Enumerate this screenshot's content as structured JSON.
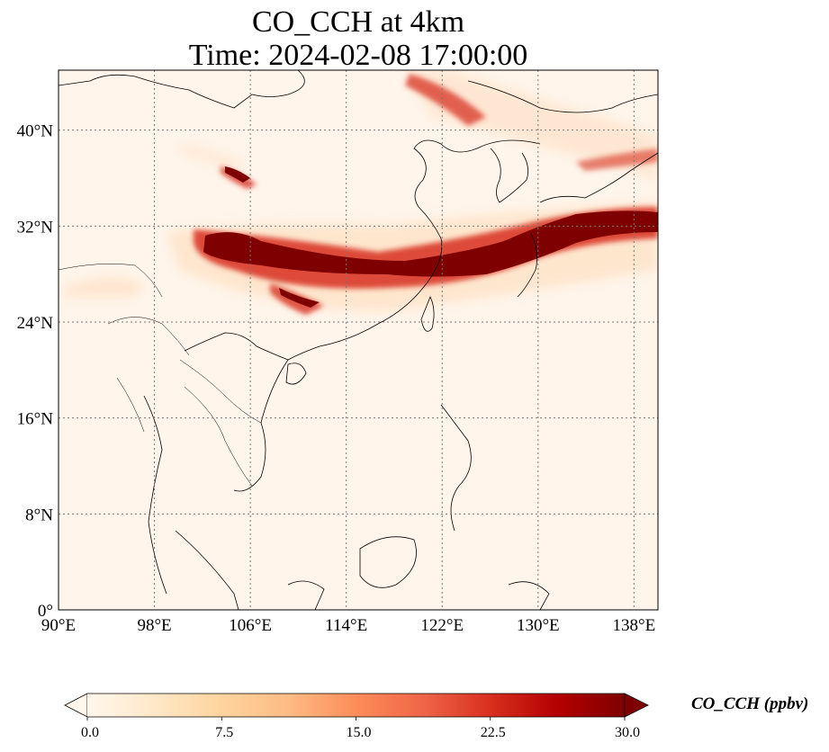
{
  "title_line1": "CO_CCH at 4km",
  "title_line2": "Time: 2024-02-08 17:00:00",
  "map": {
    "lon_range": [
      90,
      140
    ],
    "lat_range": [
      0,
      45
    ],
    "lon_ticks": [
      {
        "value": 90,
        "label": "90°E"
      },
      {
        "value": 98,
        "label": "98°E"
      },
      {
        "value": 106,
        "label": "106°E"
      },
      {
        "value": 114,
        "label": "114°E"
      },
      {
        "value": 122,
        "label": "122°E"
      },
      {
        "value": 130,
        "label": "130°E"
      },
      {
        "value": 138,
        "label": "138°E"
      }
    ],
    "lat_ticks": [
      {
        "value": 0,
        "label": "0°"
      },
      {
        "value": 8,
        "label": "8°N"
      },
      {
        "value": 16,
        "label": "16°N"
      },
      {
        "value": 24,
        "label": "24°N"
      },
      {
        "value": 32,
        "label": "32°N"
      },
      {
        "value": 40,
        "label": "40°N"
      }
    ],
    "gridlines": true,
    "background_color": "#fff5eb",
    "plume_colors": [
      "#fdd8b4",
      "#f6926f",
      "#d7301f",
      "#7f0000"
    ]
  },
  "colorbar": {
    "label": "CO_CCH (ppbv)",
    "min": 0.0,
    "max": 30.0,
    "ticks": [
      {
        "value": 0.0,
        "label": "0.0"
      },
      {
        "value": 7.5,
        "label": "7.5"
      },
      {
        "value": 15.0,
        "label": "15.0"
      },
      {
        "value": 22.5,
        "label": "22.5"
      },
      {
        "value": 30.0,
        "label": "30.0"
      }
    ],
    "extend": "both",
    "colormap": "OrRd",
    "stops": [
      "#fff7ec",
      "#fee8c8",
      "#fdd49e",
      "#fdbb84",
      "#fc8d59",
      "#ef6548",
      "#d7301f",
      "#b30000",
      "#7f0000"
    ]
  }
}
